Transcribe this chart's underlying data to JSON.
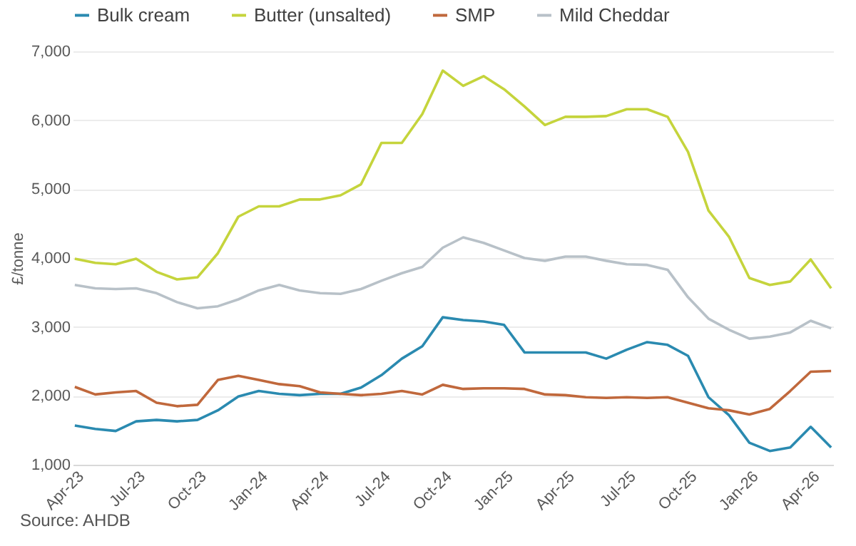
{
  "chart_data": {
    "type": "line",
    "ylabel": "£/tonne",
    "categories": [
      "Apr-23",
      null,
      null,
      "Jul-23",
      null,
      null,
      "Oct-23",
      null,
      null,
      "Jan-24",
      null,
      null,
      "Apr-24",
      null,
      null,
      "Jul-24",
      null,
      null,
      "Oct-24",
      null,
      null,
      "Jan-25",
      null,
      null,
      "Apr-25",
      null,
      null,
      "Jul-25",
      null,
      null,
      "Oct-25",
      null,
      null,
      "Jan-26",
      null,
      null,
      "Apr-26",
      null
    ],
    "series": [
      {
        "name": "Bulk cream",
        "color": "#2a8ab0",
        "values": [
          1570,
          1520,
          1490,
          1630,
          1650,
          1630,
          1650,
          1790,
          1990,
          2070,
          2030,
          2010,
          2030,
          2030,
          2120,
          2300,
          2540,
          2720,
          3140,
          3100,
          3080,
          3030,
          2630,
          2630,
          2630,
          2630,
          2540,
          2670,
          2780,
          2740,
          2580,
          1980,
          1720,
          1320,
          1200,
          1250,
          1550,
          1250
        ]
      },
      {
        "name": "Butter (unsalted)",
        "color": "#c5d43c",
        "values": [
          3990,
          3930,
          3910,
          3990,
          3800,
          3690,
          3720,
          4070,
          4600,
          4750,
          4750,
          4850,
          4850,
          4910,
          5070,
          5670,
          5670,
          6090,
          6720,
          6500,
          6640,
          6450,
          6200,
          5930,
          6050,
          6050,
          6060,
          6160,
          6160,
          6050,
          5540,
          4690,
          4310,
          3710,
          3610,
          3660,
          3980,
          3560
        ]
      },
      {
        "name": "SMP",
        "color": "#c0683c",
        "values": [
          2130,
          2020,
          2050,
          2070,
          1900,
          1850,
          1870,
          2230,
          2290,
          2230,
          2170,
          2140,
          2050,
          2030,
          2010,
          2030,
          2070,
          2020,
          2160,
          2100,
          2110,
          2110,
          2100,
          2020,
          2010,
          1980,
          1970,
          1980,
          1970,
          1980,
          1900,
          1820,
          1790,
          1730,
          1810,
          2070,
          2350,
          2360
        ]
      },
      {
        "name": "Mild Cheddar",
        "color": "#b8c1c8",
        "values": [
          3610,
          3560,
          3550,
          3560,
          3490,
          3360,
          3270,
          3300,
          3400,
          3530,
          3610,
          3530,
          3490,
          3480,
          3550,
          3670,
          3780,
          3870,
          4150,
          4300,
          4220,
          4110,
          4000,
          3960,
          4020,
          4020,
          3960,
          3910,
          3900,
          3830,
          3430,
          3120,
          2960,
          2830,
          2860,
          2920,
          3090,
          2980
        ]
      }
    ],
    "ylim": [
      1000,
      7000
    ],
    "yticks": [
      {
        "value": 1000,
        "label": "1,000"
      },
      {
        "value": 2000,
        "label": "2,000"
      },
      {
        "value": 3000,
        "label": "3,000"
      },
      {
        "value": 4000,
        "label": "4,000"
      },
      {
        "value": 5000,
        "label": "5,000"
      },
      {
        "value": 6000,
        "label": "6,000"
      },
      {
        "value": 7000,
        "label": "7,000"
      }
    ],
    "grid": "y",
    "legend": "top",
    "marker": "none",
    "line_style": "solid",
    "annotations": [
      "Source: AHDB"
    ]
  }
}
